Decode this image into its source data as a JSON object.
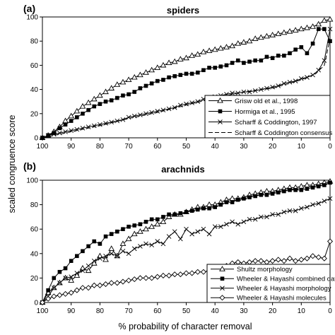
{
  "figure": {
    "ylabel": "scaled congruence score",
    "xlabel": "% probability of character removal"
  },
  "chart_data": [
    {
      "type": "line",
      "tag": "(a)",
      "title": "spiders",
      "x_ticks": [
        100,
        90,
        80,
        70,
        60,
        50,
        40,
        30,
        20,
        10,
        0
      ],
      "y_ticks": [
        0,
        20,
        40,
        60,
        80,
        100
      ],
      "xlim": [
        100,
        0
      ],
      "ylim": [
        0,
        100
      ],
      "legend_position": "bottom-right",
      "series": [
        {
          "name": "Grisw old et al., 1998",
          "marker": "triangle",
          "x": [
            100,
            98,
            96,
            94,
            92,
            90,
            88,
            86,
            84,
            82,
            80,
            78,
            76,
            74,
            72,
            70,
            68,
            66,
            64,
            62,
            60,
            58,
            56,
            54,
            52,
            50,
            48,
            46,
            44,
            42,
            40,
            38,
            36,
            34,
            32,
            30,
            28,
            26,
            24,
            22,
            20,
            18,
            16,
            14,
            12,
            10,
            8,
            6,
            4,
            2,
            0
          ],
          "values": [
            0,
            2,
            5,
            9,
            14,
            18,
            22,
            26,
            29,
            32,
            35,
            38,
            41,
            44,
            46,
            48,
            50,
            52,
            54,
            56,
            58,
            60,
            62,
            63,
            65,
            66,
            68,
            69,
            71,
            72,
            73,
            74,
            75,
            76,
            78,
            79,
            80,
            82,
            83,
            84,
            85,
            86,
            87,
            88,
            89,
            90,
            91,
            92,
            94,
            97,
            98
          ]
        },
        {
          "name": "Hormiga et al., 1995",
          "marker": "square",
          "x": [
            100,
            98,
            96,
            94,
            92,
            90,
            88,
            86,
            84,
            82,
            80,
            78,
            76,
            74,
            72,
            70,
            68,
            66,
            64,
            62,
            60,
            58,
            56,
            54,
            52,
            50,
            48,
            46,
            44,
            42,
            40,
            38,
            36,
            34,
            32,
            30,
            28,
            26,
            24,
            22,
            20,
            18,
            16,
            14,
            12,
            10,
            8,
            6,
            4,
            2,
            0
          ],
          "values": [
            0,
            2,
            4,
            8,
            11,
            14,
            17,
            20,
            23,
            26,
            28,
            30,
            31,
            33,
            35,
            36,
            38,
            41,
            43,
            45,
            47,
            48,
            50,
            51,
            52,
            53,
            53,
            54,
            56,
            58,
            58,
            59,
            60,
            62,
            64,
            62,
            63,
            64,
            64,
            67,
            66,
            68,
            68,
            70,
            73,
            75,
            70,
            78,
            90,
            90,
            80
          ]
        },
        {
          "name": "Scharff & Coddington, 1997",
          "marker": "x",
          "x": [
            100,
            98,
            96,
            94,
            92,
            90,
            88,
            86,
            84,
            82,
            80,
            78,
            76,
            74,
            72,
            70,
            68,
            66,
            64,
            62,
            60,
            58,
            56,
            54,
            52,
            50,
            48,
            46,
            44,
            42,
            40,
            38,
            36,
            34,
            32,
            30,
            28,
            26,
            24,
            22,
            20,
            18,
            16,
            14,
            12,
            10,
            8,
            6,
            4,
            2,
            0
          ],
          "values": [
            0,
            2,
            3,
            4,
            5,
            6,
            7,
            8,
            9,
            10,
            11,
            12,
            13,
            14,
            15,
            17,
            18,
            19,
            20,
            21,
            22,
            23,
            24,
            25,
            27,
            28,
            29,
            30,
            32,
            33,
            34,
            35,
            36,
            37,
            37,
            38,
            38,
            39,
            40,
            41,
            42,
            43,
            45,
            46,
            47,
            49,
            50,
            52,
            56,
            64,
            90
          ]
        },
        {
          "name": "Scharff & Coddington consensus",
          "marker": "none",
          "x": [
            100,
            90,
            80,
            70,
            60,
            50,
            40,
            30,
            20,
            10,
            5,
            2,
            0
          ],
          "values": [
            0,
            5,
            10,
            16,
            21,
            27,
            33,
            38,
            41,
            48,
            53,
            60,
            82
          ]
        }
      ]
    },
    {
      "type": "line",
      "tag": "(b)",
      "title": "arachnids",
      "x_ticks": [
        100,
        90,
        80,
        70,
        60,
        50,
        40,
        30,
        20,
        10,
        0
      ],
      "y_ticks": [
        0,
        20,
        40,
        60,
        80,
        100
      ],
      "xlim": [
        100,
        0
      ],
      "ylim": [
        0,
        100
      ],
      "legend_position": "bottom-right",
      "series": [
        {
          "name": "Shultz morphology",
          "marker": "triangle",
          "x": [
            100,
            98,
            96,
            94,
            92,
            90,
            88,
            86,
            84,
            82,
            80,
            78,
            76,
            74,
            72,
            70,
            68,
            66,
            64,
            62,
            60,
            58,
            56,
            54,
            52,
            50,
            48,
            46,
            44,
            42,
            40,
            38,
            36,
            34,
            32,
            30,
            28,
            26,
            24,
            22,
            20,
            18,
            16,
            14,
            12,
            10,
            8,
            6,
            4,
            2,
            0
          ],
          "values": [
            0,
            8,
            12,
            16,
            20,
            18,
            22,
            28,
            26,
            32,
            38,
            35,
            44,
            38,
            48,
            52,
            56,
            58,
            60,
            62,
            64,
            66,
            70,
            72,
            72,
            74,
            76,
            78,
            78,
            80,
            80,
            82,
            84,
            85,
            85,
            86,
            88,
            89,
            90,
            91,
            91,
            92,
            93,
            94,
            94,
            95,
            96,
            96,
            97,
            98,
            99
          ]
        },
        {
          "name": "Wheeler & Hayashi combined data",
          "marker": "square",
          "x": [
            100,
            98,
            96,
            94,
            92,
            90,
            88,
            86,
            84,
            82,
            80,
            78,
            76,
            74,
            72,
            70,
            68,
            66,
            64,
            62,
            60,
            58,
            56,
            54,
            52,
            50,
            48,
            46,
            44,
            42,
            40,
            38,
            36,
            34,
            32,
            30,
            28,
            26,
            24,
            22,
            20,
            18,
            16,
            14,
            12,
            10,
            8,
            6,
            4,
            2,
            0
          ],
          "values": [
            0,
            10,
            20,
            25,
            28,
            34,
            38,
            42,
            46,
            50,
            48,
            54,
            56,
            58,
            60,
            62,
            63,
            64,
            66,
            68,
            68,
            70,
            72,
            72,
            73,
            74,
            75,
            76,
            77,
            77,
            78,
            80,
            82,
            82,
            84,
            85,
            86,
            87,
            88,
            88,
            89,
            90,
            91,
            92,
            92,
            92,
            93,
            94,
            95,
            96,
            98
          ]
        },
        {
          "name": "Wheeler & Hayashi morphology",
          "marker": "x",
          "x": [
            100,
            98,
            96,
            94,
            92,
            90,
            88,
            86,
            84,
            82,
            80,
            78,
            76,
            74,
            72,
            70,
            68,
            66,
            64,
            62,
            60,
            58,
            56,
            54,
            52,
            50,
            48,
            46,
            44,
            42,
            40,
            38,
            36,
            34,
            32,
            30,
            28,
            26,
            24,
            22,
            20,
            18,
            16,
            14,
            12,
            10,
            8,
            6,
            4,
            2,
            0
          ],
          "values": [
            0,
            5,
            12,
            16,
            20,
            21,
            24,
            26,
            30,
            34,
            36,
            38,
            40,
            38,
            42,
            40,
            44,
            46,
            48,
            47,
            50,
            48,
            54,
            58,
            52,
            60,
            56,
            58,
            60,
            56,
            62,
            62,
            64,
            66,
            64,
            66,
            68,
            68,
            70,
            70,
            72,
            72,
            74,
            75,
            75,
            77,
            78,
            80,
            81,
            83,
            85
          ]
        },
        {
          "name": "Wheeler & Hayashi molecules",
          "marker": "diamond",
          "x": [
            100,
            98,
            96,
            94,
            92,
            90,
            88,
            86,
            84,
            82,
            80,
            78,
            76,
            74,
            72,
            70,
            68,
            66,
            64,
            62,
            60,
            58,
            56,
            54,
            52,
            50,
            48,
            46,
            44,
            42,
            40,
            38,
            36,
            34,
            32,
            30,
            28,
            26,
            24,
            22,
            20,
            18,
            16,
            14,
            12,
            10,
            8,
            6,
            4,
            2,
            0
          ],
          "values": [
            0,
            3,
            5,
            6,
            7,
            8,
            10,
            12,
            12,
            14,
            14,
            15,
            16,
            16,
            17,
            18,
            19,
            20,
            20,
            20,
            21,
            22,
            22,
            23,
            23,
            24,
            24,
            25,
            25,
            26,
            27,
            28,
            30,
            32,
            33,
            32,
            33,
            34,
            34,
            33,
            34,
            35,
            34,
            36,
            34,
            35,
            36,
            38,
            37,
            36,
            50
          ]
        }
      ]
    }
  ]
}
